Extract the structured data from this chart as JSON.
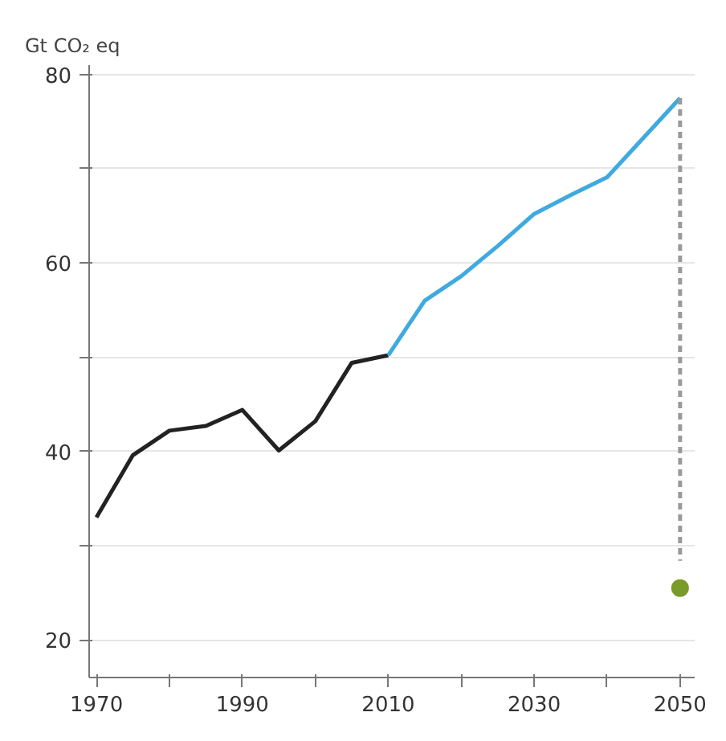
{
  "chart_data": {
    "type": "line",
    "ylabel": "Gt CO₂ eq",
    "xlim": [
      1969,
      2052
    ],
    "ylim": [
      16,
      81
    ],
    "xticks": [
      1970,
      {
        "value": 1980,
        "label": null
      },
      1990,
      {
        "value": 2000,
        "label": null
      },
      2010,
      {
        "value": 2020,
        "label": null
      },
      2030,
      {
        "value": 2040,
        "label": null
      },
      2050
    ],
    "yticks": [
      20,
      {
        "value": 30,
        "label": null
      },
      40,
      {
        "value": 50,
        "label": null
      },
      60,
      {
        "value": 70,
        "label": null
      },
      80
    ],
    "grid": "y",
    "line_style": "solid",
    "marker": "none",
    "series": [
      {
        "color": "#222222",
        "x": [
          1970,
          1975,
          1980,
          1985,
          1990,
          1995,
          2000,
          2005,
          2010
        ],
        "values": [
          33.0,
          39.6,
          42.2,
          42.7,
          44.4,
          40.1,
          43.2,
          49.4,
          50.2
        ]
      },
      {
        "color": "#3fa9e0",
        "x": [
          2010,
          2015,
          2020,
          2025,
          2030,
          2035,
          2040,
          2045,
          2050
        ],
        "values": [
          50.2,
          56.0,
          58.6,
          61.8,
          65.2,
          67.2,
          69.1,
          73.3,
          77.5
        ]
      },
      {
        "color": "#9a9a9a",
        "line_style": "dashed",
        "x": [
          2050,
          2050
        ],
        "values": [
          77.5,
          28.4
        ]
      },
      {
        "type": "scatter",
        "marker": "circle",
        "color": "#7a9a2a",
        "x": [
          2050
        ],
        "values": [
          25.5
        ]
      }
    ]
  }
}
